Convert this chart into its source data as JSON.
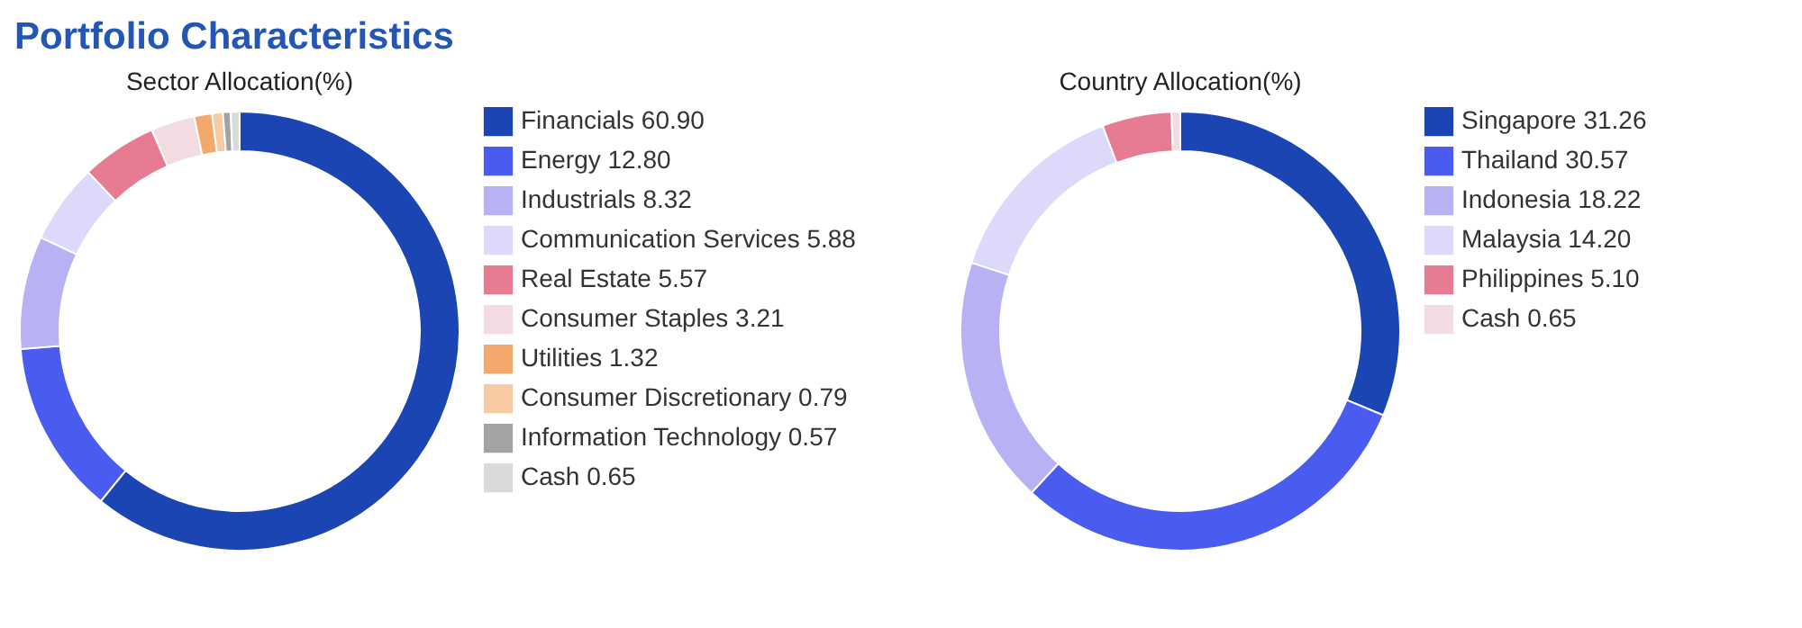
{
  "chart_data": [
    {
      "type": "donut",
      "title": "Portfolio Characteristics",
      "subtitle": "Sector Allocation(%)",
      "legend": "right",
      "categories": [
        "Financials",
        "Energy",
        "Industrials",
        "Communication Services",
        "Real Estate",
        "Consumer Staples",
        "Utilities",
        "Consumer Discretionary",
        "Information Technology",
        "Cash"
      ],
      "values": [
        60.9,
        12.8,
        8.32,
        5.88,
        5.57,
        3.21,
        1.32,
        0.79,
        0.57,
        0.65
      ],
      "value_labels": [
        "60.90",
        "12.80",
        "8.32",
        "5.88",
        "5.57",
        "3.21",
        "1.32",
        "0.79",
        "0.57",
        "0.65"
      ],
      "colors": [
        "#1b45b2",
        "#4a5cf0",
        "#b8b2f4",
        "#dcd9fa",
        "#e67b91",
        "#f2dce1",
        "#f2a96b",
        "#f8caa1",
        "#a3a3a3",
        "#dadada"
      ]
    },
    {
      "type": "donut",
      "title": "Country Allocation(%)",
      "legend": "right",
      "categories": [
        "Singapore",
        "Thailand",
        "Indonesia",
        "Malaysia",
        "Philippines",
        "Cash"
      ],
      "values": [
        31.26,
        30.57,
        18.22,
        14.2,
        5.1,
        0.65
      ],
      "value_labels": [
        "31.26",
        "30.57",
        "18.22",
        "14.20",
        "5.10",
        "0.65"
      ],
      "colors": [
        "#1b45b2",
        "#4a5cf0",
        "#b8b2f4",
        "#dcd9fa",
        "#e67b91",
        "#f2dce1"
      ]
    }
  ]
}
